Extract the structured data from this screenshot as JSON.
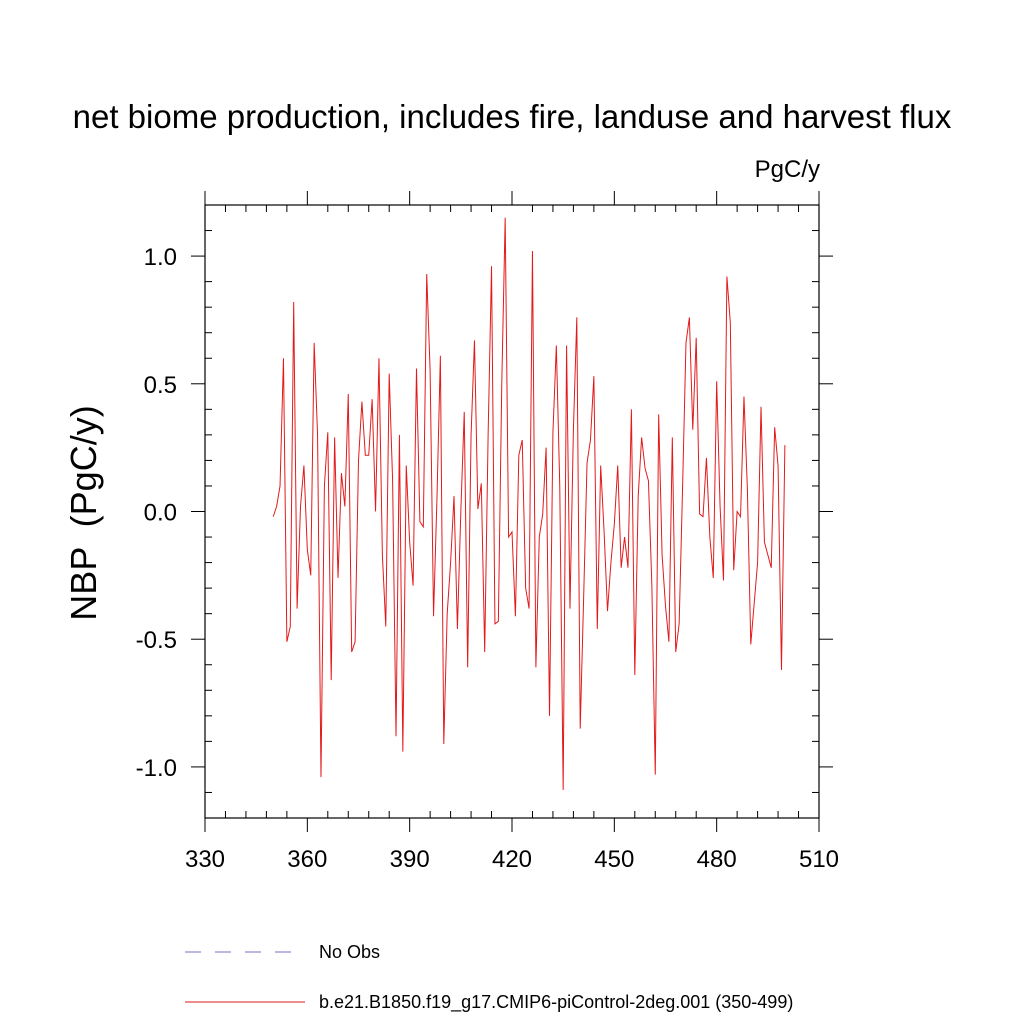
{
  "chart_data": {
    "type": "line",
    "title": "net biome production, includes fire, landuse and harvest flux",
    "units_label": "PgC/y",
    "ylabel": "NBP  (PgC/y)",
    "xlabel": "",
    "xlim": [
      330,
      510
    ],
    "ylim": [
      -1.2,
      1.2
    ],
    "x_ticks": [
      330,
      360,
      390,
      420,
      450,
      480,
      510
    ],
    "x_tick_labels": [
      "330",
      "360",
      "390",
      "420",
      "450",
      "480",
      "510"
    ],
    "y_ticks": [
      -1.0,
      -0.5,
      0.0,
      0.5,
      1.0
    ],
    "y_tick_labels": [
      "-1.0",
      "-0.5",
      "0.0",
      "0.5",
      "1.0"
    ],
    "grid": false,
    "legend_position": "bottom",
    "series": [
      {
        "name": "No Obs",
        "color": "#7a6fc0",
        "dash": "dashed",
        "x": [],
        "values": []
      },
      {
        "name": "b.e21.B1850.f19_g17.CMIP6-piControl-2deg.001 (350-499)",
        "color": "#e31a1c",
        "dash": "solid",
        "x_start": 350,
        "values": [
          -0.02,
          0.02,
          0.1,
          0.6,
          -0.51,
          -0.45,
          0.82,
          -0.38,
          0.02,
          0.18,
          -0.15,
          -0.25,
          0.66,
          0.3,
          -1.04,
          0.1,
          0.31,
          -0.66,
          0.29,
          -0.26,
          0.15,
          0.02,
          0.46,
          -0.55,
          -0.51,
          0.2,
          0.43,
          0.22,
          0.22,
          0.44,
          0.0,
          0.6,
          -0.17,
          -0.45,
          0.54,
          0.12,
          -0.88,
          0.3,
          -0.94,
          0.18,
          -0.12,
          -0.29,
          0.56,
          -0.04,
          -0.06,
          0.93,
          0.55,
          -0.41,
          0.05,
          0.61,
          -0.91,
          -0.4,
          -0.2,
          0.06,
          -0.46,
          0.0,
          0.39,
          -0.61,
          0.3,
          0.67,
          0.01,
          0.11,
          -0.55,
          0.3,
          0.96,
          -0.44,
          -0.43,
          0.5,
          1.15,
          -0.1,
          -0.08,
          -0.41,
          0.22,
          0.28,
          -0.3,
          -0.38,
          1.02,
          -0.61,
          -0.1,
          -0.01,
          0.25,
          -0.8,
          0.31,
          0.65,
          0.1,
          -1.09,
          0.65,
          -0.38,
          0.32,
          0.76,
          -0.85,
          -0.34,
          0.19,
          0.28,
          0.53,
          -0.46,
          0.18,
          -0.08,
          -0.39,
          -0.2,
          -0.05,
          0.18,
          -0.22,
          -0.1,
          -0.22,
          0.4,
          -0.64,
          0.06,
          0.29,
          0.17,
          0.12,
          -0.29,
          -1.03,
          0.38,
          -0.17,
          -0.37,
          -0.51,
          0.29,
          -0.55,
          -0.44,
          0.09,
          0.66,
          0.76,
          0.32,
          0.68,
          -0.01,
          -0.02,
          0.21,
          -0.1,
          -0.26,
          0.51,
          0.02,
          -0.27,
          0.92,
          0.74,
          -0.23,
          0.0,
          -0.02,
          0.45,
          0.09,
          -0.52,
          -0.36,
          -0.2,
          0.41,
          -0.12,
          -0.17,
          -0.22,
          0.33,
          0.18,
          -0.62,
          0.26
        ]
      }
    ]
  }
}
